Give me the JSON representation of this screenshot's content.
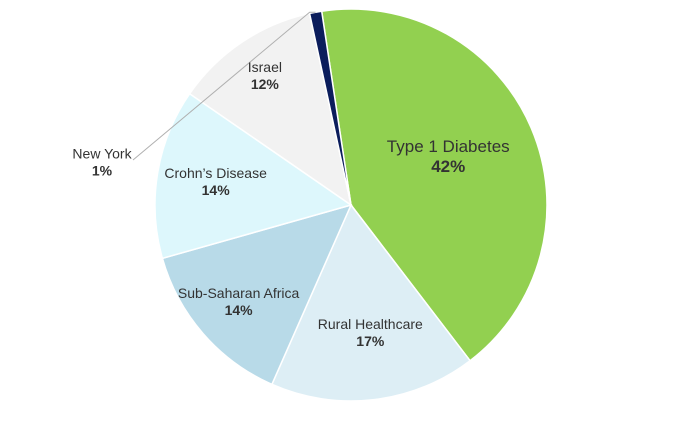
{
  "chart_data": {
    "type": "pie",
    "title": "",
    "slices": [
      {
        "label": "Type 1 Diabetes",
        "value": 42,
        "display": "42%",
        "color": "#92d050"
      },
      {
        "label": "Rural Healthcare",
        "value": 17,
        "display": "17%",
        "color": "#ddeef5"
      },
      {
        "label": "Sub-Saharan Africa",
        "value": 14,
        "display": "14%",
        "color": "#b8dae8"
      },
      {
        "label": "Crohn’s Disease",
        "value": 14,
        "display": "14%",
        "color": "#ddf7fc"
      },
      {
        "label": "Israel",
        "value": 12,
        "display": "12%",
        "color": "#f2f2f2"
      },
      {
        "label": "New York",
        "value": 1,
        "display": "1%",
        "color": "#0b1d5c"
      }
    ],
    "legend": "none",
    "label_style": "name and percent inside slices; New York outside with leader line"
  }
}
